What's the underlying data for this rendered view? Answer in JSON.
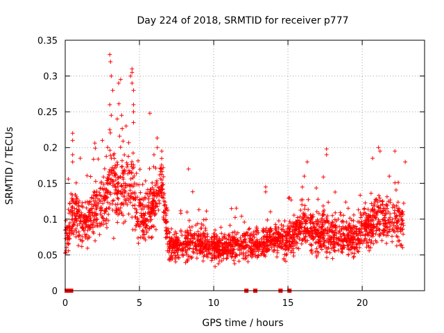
{
  "chart_data": {
    "type": "scatter",
    "title": "Day 224 of 2018, SRMTID for receiver p777",
    "xlabel": "GPS time / hours",
    "ylabel": "SRMTID / TECUs",
    "xlim": [
      0,
      24.2
    ],
    "ylim": [
      0,
      0.35
    ],
    "xticks": [
      0,
      5,
      10,
      15,
      20
    ],
    "xtick_labels": [
      "0",
      "5",
      "10",
      "15",
      "20"
    ],
    "yticks": [
      0,
      0.05,
      0.1,
      0.15,
      0.2,
      0.25,
      0.3,
      0.35
    ],
    "ytick_labels": [
      "0",
      "0.05",
      "0.1",
      "0.15",
      "0.2",
      "0.25",
      "0.3",
      "0.35"
    ],
    "grid": true,
    "marker": "plus",
    "color": "#ff0000",
    "series": [
      {
        "name": "SRMTID",
        "trend": [
          {
            "x": 0.0,
            "y": 0.07,
            "spread": 0.02
          },
          {
            "x": 0.5,
            "y": 0.11,
            "spread": 0.035
          },
          {
            "x": 1.0,
            "y": 0.1,
            "spread": 0.03
          },
          {
            "x": 1.5,
            "y": 0.095,
            "spread": 0.03
          },
          {
            "x": 2.0,
            "y": 0.11,
            "spread": 0.035
          },
          {
            "x": 2.5,
            "y": 0.125,
            "spread": 0.04
          },
          {
            "x": 3.0,
            "y": 0.15,
            "spread": 0.055
          },
          {
            "x": 3.5,
            "y": 0.14,
            "spread": 0.05
          },
          {
            "x": 4.0,
            "y": 0.14,
            "spread": 0.05
          },
          {
            "x": 4.5,
            "y": 0.145,
            "spread": 0.05
          },
          {
            "x": 5.0,
            "y": 0.1,
            "spread": 0.035
          },
          {
            "x": 5.5,
            "y": 0.1,
            "spread": 0.035
          },
          {
            "x": 6.0,
            "y": 0.12,
            "spread": 0.035
          },
          {
            "x": 6.5,
            "y": 0.15,
            "spread": 0.035
          },
          {
            "x": 7.0,
            "y": 0.06,
            "spread": 0.02
          },
          {
            "x": 8.0,
            "y": 0.065,
            "spread": 0.022
          },
          {
            "x": 9.0,
            "y": 0.07,
            "spread": 0.022
          },
          {
            "x": 10.0,
            "y": 0.06,
            "spread": 0.02
          },
          {
            "x": 11.0,
            "y": 0.06,
            "spread": 0.02
          },
          {
            "x": 12.0,
            "y": 0.065,
            "spread": 0.02
          },
          {
            "x": 13.0,
            "y": 0.065,
            "spread": 0.022
          },
          {
            "x": 14.0,
            "y": 0.07,
            "spread": 0.022
          },
          {
            "x": 15.0,
            "y": 0.07,
            "spread": 0.022
          },
          {
            "x": 16.0,
            "y": 0.09,
            "spread": 0.028
          },
          {
            "x": 17.0,
            "y": 0.08,
            "spread": 0.028
          },
          {
            "x": 18.0,
            "y": 0.08,
            "spread": 0.028
          },
          {
            "x": 19.0,
            "y": 0.07,
            "spread": 0.025
          },
          {
            "x": 20.0,
            "y": 0.08,
            "spread": 0.028
          },
          {
            "x": 21.0,
            "y": 0.1,
            "spread": 0.032
          },
          {
            "x": 22.0,
            "y": 0.1,
            "spread": 0.032
          },
          {
            "x": 22.8,
            "y": 0.09,
            "spread": 0.03
          }
        ],
        "outliers": [
          {
            "x": 3.0,
            "y": 0.33
          },
          {
            "x": 3.05,
            "y": 0.32
          },
          {
            "x": 3.1,
            "y": 0.3
          },
          {
            "x": 3.2,
            "y": 0.28
          },
          {
            "x": 3.0,
            "y": 0.26
          },
          {
            "x": 3.1,
            "y": 0.245
          },
          {
            "x": 3.6,
            "y": 0.29
          },
          {
            "x": 3.8,
            "y": 0.245
          },
          {
            "x": 4.5,
            "y": 0.31
          },
          {
            "x": 4.5,
            "y": 0.305
          },
          {
            "x": 4.4,
            "y": 0.3
          },
          {
            "x": 4.5,
            "y": 0.29
          },
          {
            "x": 4.6,
            "y": 0.28
          },
          {
            "x": 4.6,
            "y": 0.26
          },
          {
            "x": 4.6,
            "y": 0.25
          },
          {
            "x": 3.0,
            "y": 0.225
          },
          {
            "x": 3.5,
            "y": 0.24
          },
          {
            "x": 4.1,
            "y": 0.23
          },
          {
            "x": 4.6,
            "y": 0.235
          },
          {
            "x": 5.7,
            "y": 0.248
          },
          {
            "x": 0.5,
            "y": 0.22
          },
          {
            "x": 0.5,
            "y": 0.21
          },
          {
            "x": 0.5,
            "y": 0.19
          },
          {
            "x": 0.5,
            "y": 0.18
          },
          {
            "x": 2.5,
            "y": 0.21
          },
          {
            "x": 6.2,
            "y": 0.2
          },
          {
            "x": 6.5,
            "y": 0.195
          },
          {
            "x": 8.3,
            "y": 0.17
          },
          {
            "x": 17.6,
            "y": 0.198
          },
          {
            "x": 17.6,
            "y": 0.19
          },
          {
            "x": 21.1,
            "y": 0.2
          },
          {
            "x": 21.2,
            "y": 0.195
          },
          {
            "x": 22.2,
            "y": 0.195
          },
          {
            "x": 20.7,
            "y": 0.185
          },
          {
            "x": 22.9,
            "y": 0.18
          },
          {
            "x": 16.3,
            "y": 0.18
          },
          {
            "x": 13.5,
            "y": 0.145
          },
          {
            "x": 15.1,
            "y": 0.13
          },
          {
            "x": 16.1,
            "y": 0.16
          }
        ],
        "zeros": [
          0.1,
          0.2,
          0.3,
          0.4,
          12.2,
          12.8,
          14.5,
          15.1
        ]
      }
    ]
  }
}
